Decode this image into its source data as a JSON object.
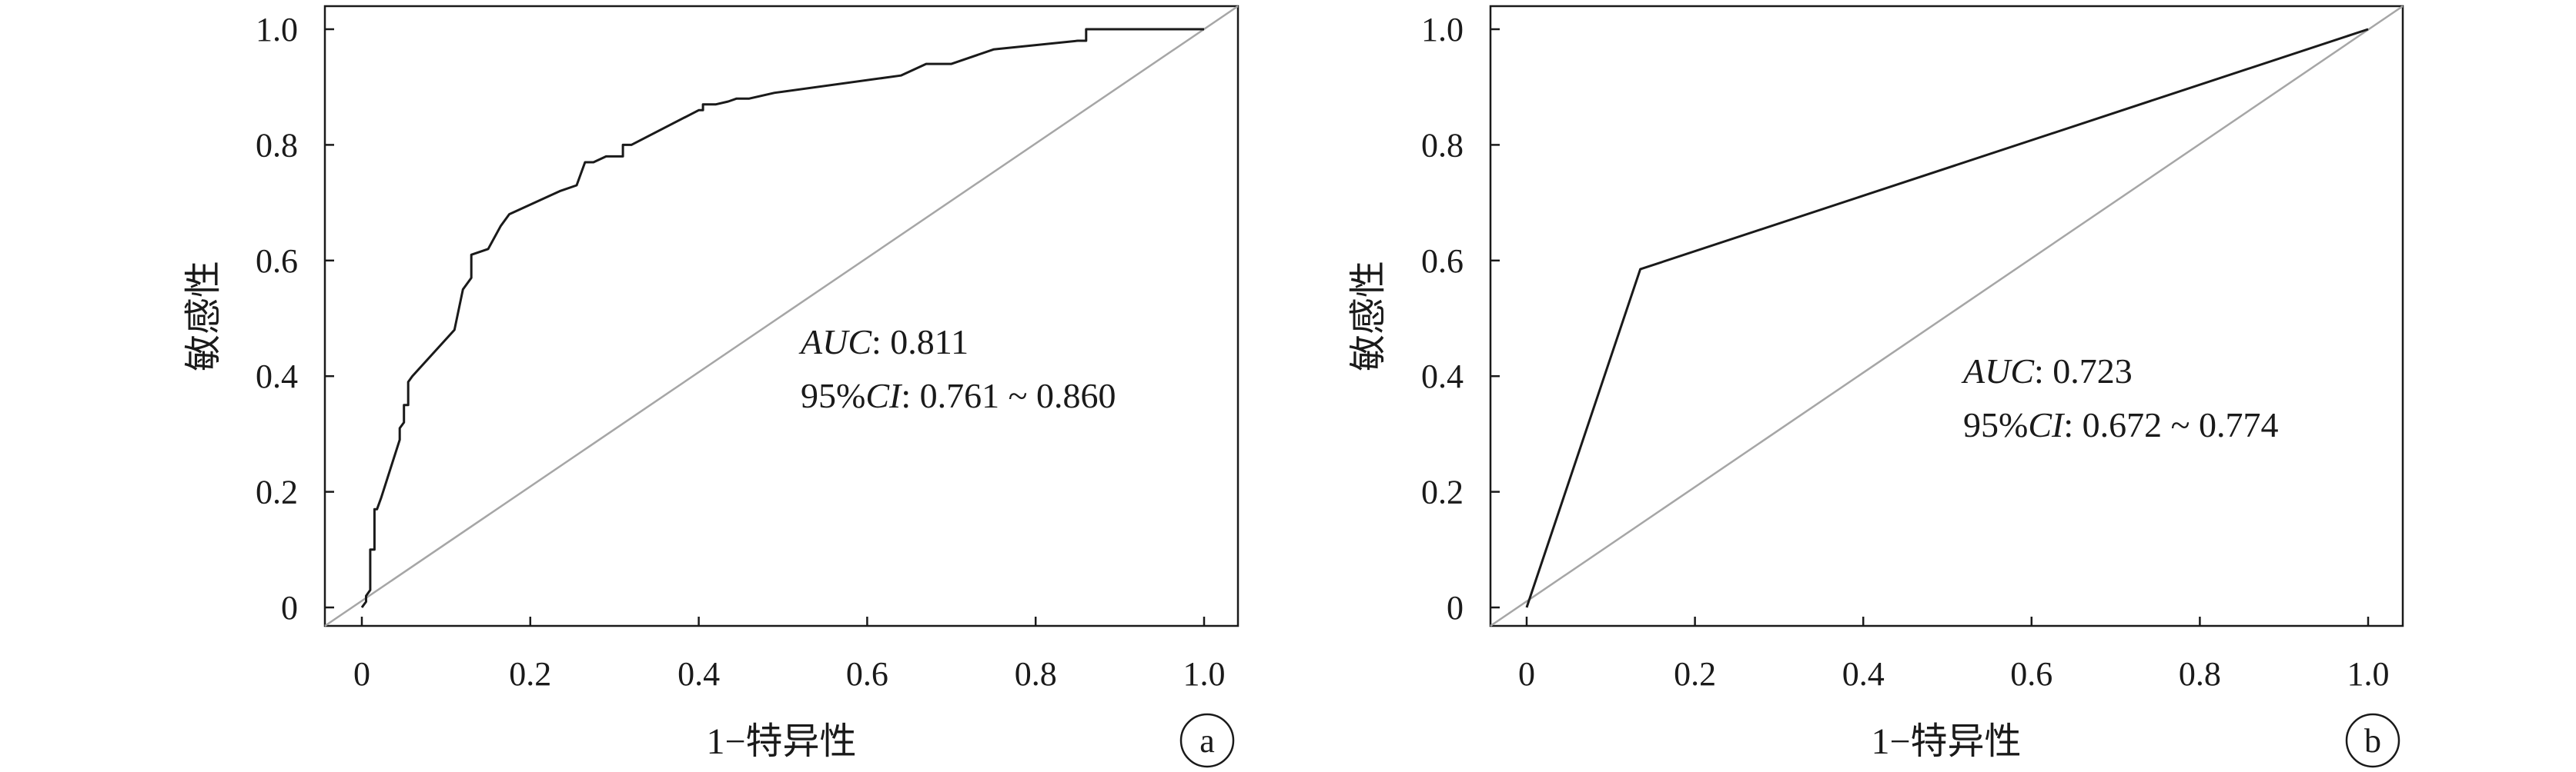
{
  "chart_data": [
    {
      "type": "line",
      "panel": "a",
      "xlabel": "1−特异性",
      "ylabel": "敏感性",
      "xlim": [
        0,
        1
      ],
      "ylim": [
        0,
        1
      ],
      "x_ticks": [
        "0",
        "0.2",
        "0.4",
        "0.6",
        "0.8",
        "1.0"
      ],
      "y_ticks": [
        "0",
        "0.2",
        "0.4",
        "0.6",
        "0.8",
        "1.0"
      ],
      "annotation": {
        "auc_label": "AUC",
        "auc_value": ": 0.811",
        "ci_prefix": "95%",
        "ci_label": "CI",
        "ci_value": ": 0.761 ~ 0.860"
      },
      "series": [
        {
          "x": [
            0,
            0.005,
            0.005,
            0.01,
            0.01,
            0.015,
            0.015,
            0.018,
            0.018,
            0.023,
            0.045,
            0.045,
            0.05,
            0.05,
            0.055,
            0.055,
            0.06,
            0.11,
            0.12,
            0.13,
            0.13,
            0.15,
            0.165,
            0.175,
            0.235,
            0.255,
            0.265,
            0.275,
            0.29,
            0.31,
            0.31,
            0.32,
            0.4,
            0.405,
            0.405,
            0.42,
            0.435,
            0.445,
            0.46,
            0.49,
            0.64,
            0.67,
            0.7,
            0.75,
            0.85,
            0.86,
            0.86,
            1.0
          ],
          "y": [
            0,
            0.01,
            0.02,
            0.03,
            0.1,
            0.1,
            0.17,
            0.17,
            0.17,
            0.19,
            0.29,
            0.31,
            0.32,
            0.35,
            0.35,
            0.39,
            0.4,
            0.48,
            0.55,
            0.57,
            0.61,
            0.62,
            0.66,
            0.68,
            0.72,
            0.73,
            0.77,
            0.77,
            0.78,
            0.78,
            0.8,
            0.8,
            0.86,
            0.86,
            0.87,
            0.87,
            0.875,
            0.88,
            0.88,
            0.89,
            0.92,
            0.94,
            0.94,
            0.965,
            0.98,
            0.98,
            1.0,
            1.0
          ]
        }
      ],
      "reference_line": {
        "x": [
          0,
          1
        ],
        "y": [
          0,
          1
        ]
      }
    },
    {
      "type": "line",
      "panel": "b",
      "xlabel": "1−特异性",
      "ylabel": "敏感性",
      "xlim": [
        0,
        1
      ],
      "ylim": [
        0,
        1
      ],
      "x_ticks": [
        "0",
        "0.2",
        "0.4",
        "0.6",
        "0.8",
        "1.0"
      ],
      "y_ticks": [
        "0",
        "0.2",
        "0.4",
        "0.6",
        "0.8",
        "1.0"
      ],
      "annotation": {
        "auc_label": "AUC",
        "auc_value": ": 0.723",
        "ci_prefix": "95%",
        "ci_label": "CI",
        "ci_value": ": 0.672 ~ 0.774"
      },
      "series": [
        {
          "x": [
            0,
            0.135,
            1.0
          ],
          "y": [
            0,
            0.585,
            1.0
          ]
        }
      ],
      "reference_line": {
        "x": [
          0,
          1
        ],
        "y": [
          0,
          1
        ]
      }
    }
  ]
}
